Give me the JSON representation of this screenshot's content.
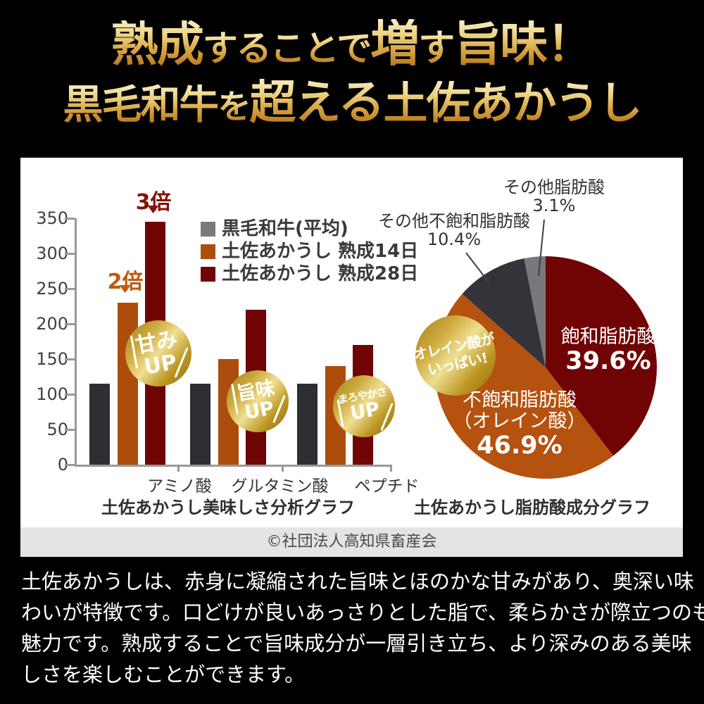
{
  "header": {
    "line1": {
      "a": "熟成",
      "b": "することで",
      "c": "増",
      "d": "す",
      "e": "旨味！"
    },
    "line2": {
      "a": "黒毛和牛",
      "b": "を",
      "c": "超える",
      "d": "土佐あかうし"
    }
  },
  "chart_data": [
    {
      "type": "bar",
      "title": "土佐あかうし美味しさ分析グラフ",
      "categories": [
        "アミノ酸",
        "グルタミン酸",
        "ペプチド"
      ],
      "series": [
        {
          "name": "黒毛和牛(平均)",
          "legend_color": "#7a7a7a",
          "bar_color": "#2e2f33",
          "values": [
            115,
            115,
            115
          ]
        },
        {
          "name": "土佐あかうし 熟成14日",
          "legend_color": "#ad4d0d",
          "bar_color": "#ad4d0d",
          "values": [
            230,
            150,
            140
          ]
        },
        {
          "name": "土佐あかうし 熟成28日",
          "legend_color": "#700303",
          "bar_color": "#700303",
          "values": [
            345,
            220,
            170
          ]
        }
      ],
      "ylim": [
        0,
        350
      ],
      "yticks": [
        0,
        50,
        100,
        150,
        200,
        250,
        300,
        350
      ],
      "grid": false,
      "legend_position": "upper right",
      "annotations": [
        {
          "text": "2倍",
          "color": "#c05a10",
          "target": "アミノ酸 熟成14日"
        },
        {
          "text": "3倍",
          "color": "#871109",
          "target": "アミノ酸 熟成28日"
        }
      ],
      "badges": [
        {
          "line1": "甘み",
          "line2": "UP"
        },
        {
          "line1": "旨味",
          "line2": "UP"
        },
        {
          "line1": "まろやかさ",
          "line2": "UP"
        }
      ]
    },
    {
      "type": "pie",
      "title": "土佐あかうし脂肪酸成分グラフ",
      "start_angle": "top",
      "direction": "clockwise",
      "slices": [
        {
          "label": "飽和脂肪酸",
          "value": 39.6,
          "color": "#700303",
          "label_position": "inside"
        },
        {
          "label": "不飽和脂肪酸",
          "label2": "（オレイン酸）",
          "value": 46.9,
          "color": "#b5520f",
          "label_position": "inside"
        },
        {
          "label": "その他不飽和脂肪酸",
          "value": 10.4,
          "color": "#33343a",
          "label_position": "outside"
        },
        {
          "label": "その他脂肪酸",
          "value": 3.1,
          "color": "#77787c",
          "label_position": "outside"
        }
      ],
      "badge": {
        "line1": "オレイン酸が",
        "line2": "いっぱい!"
      }
    }
  ],
  "caption": "©社団法人高知県畜産会",
  "body": {
    "lines": [
      "土佐あかうしは、赤身に凝縮された旨味とほのかな甘みがあり、奥深い味",
      "わいが特徴です。口どけが良いあっさりとした脂で、柔らかさが際立つのも",
      "魅力です。熟成することで旨味成分が一層引き立ち、より深みのある美味",
      "しさを楽しむことができます。"
    ]
  }
}
